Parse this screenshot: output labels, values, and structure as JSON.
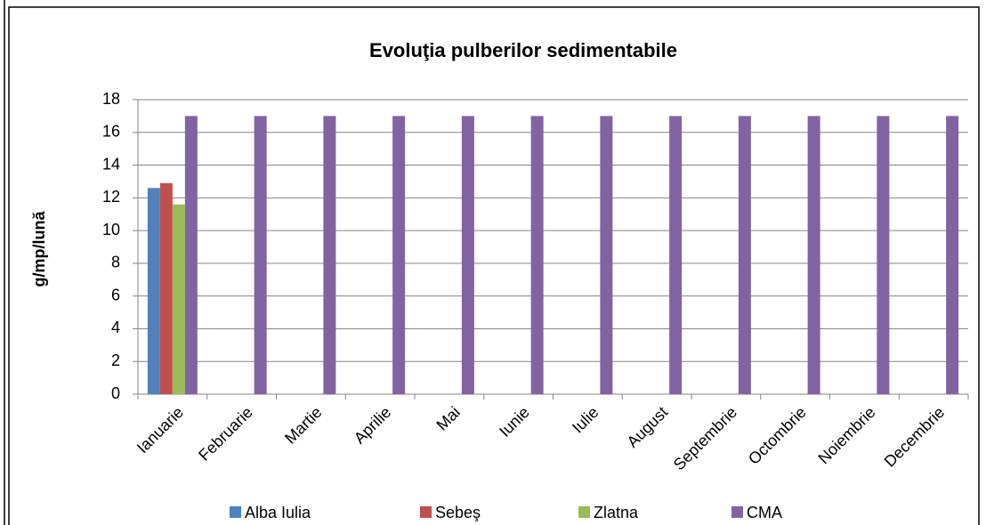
{
  "chart_data": {
    "type": "bar",
    "title": "Evoluţia pulberilor sedimentabile",
    "y_label": "g/mp/lună",
    "categories": [
      "Ianuarie",
      "Februarie",
      "Martie",
      "Aprilie",
      "Mai",
      "Iunie",
      "Iulie",
      "August",
      "Septembrie",
      "Octombrie",
      "Noiembrie",
      "Decembrie"
    ],
    "series": [
      {
        "name": "Alba Iulia",
        "color": "#4f81bd",
        "values": [
          12.6,
          null,
          null,
          null,
          null,
          null,
          null,
          null,
          null,
          null,
          null,
          null
        ]
      },
      {
        "name": "Sebeş",
        "color": "#c0504d",
        "values": [
          12.9,
          null,
          null,
          null,
          null,
          null,
          null,
          null,
          null,
          null,
          null,
          null
        ]
      },
      {
        "name": "Zlatna",
        "color": "#9bbb59",
        "values": [
          11.6,
          null,
          null,
          null,
          null,
          null,
          null,
          null,
          null,
          null,
          null,
          null
        ]
      },
      {
        "name": "CMA",
        "color": "#8064a2",
        "values": [
          17,
          17,
          17,
          17,
          17,
          17,
          17,
          17,
          17,
          17,
          17,
          17
        ]
      }
    ],
    "ylim": [
      0,
      18
    ],
    "yticks": [
      0,
      2,
      4,
      6,
      8,
      10,
      12,
      14,
      16,
      18
    ],
    "grid": true,
    "legend": "bottom"
  }
}
